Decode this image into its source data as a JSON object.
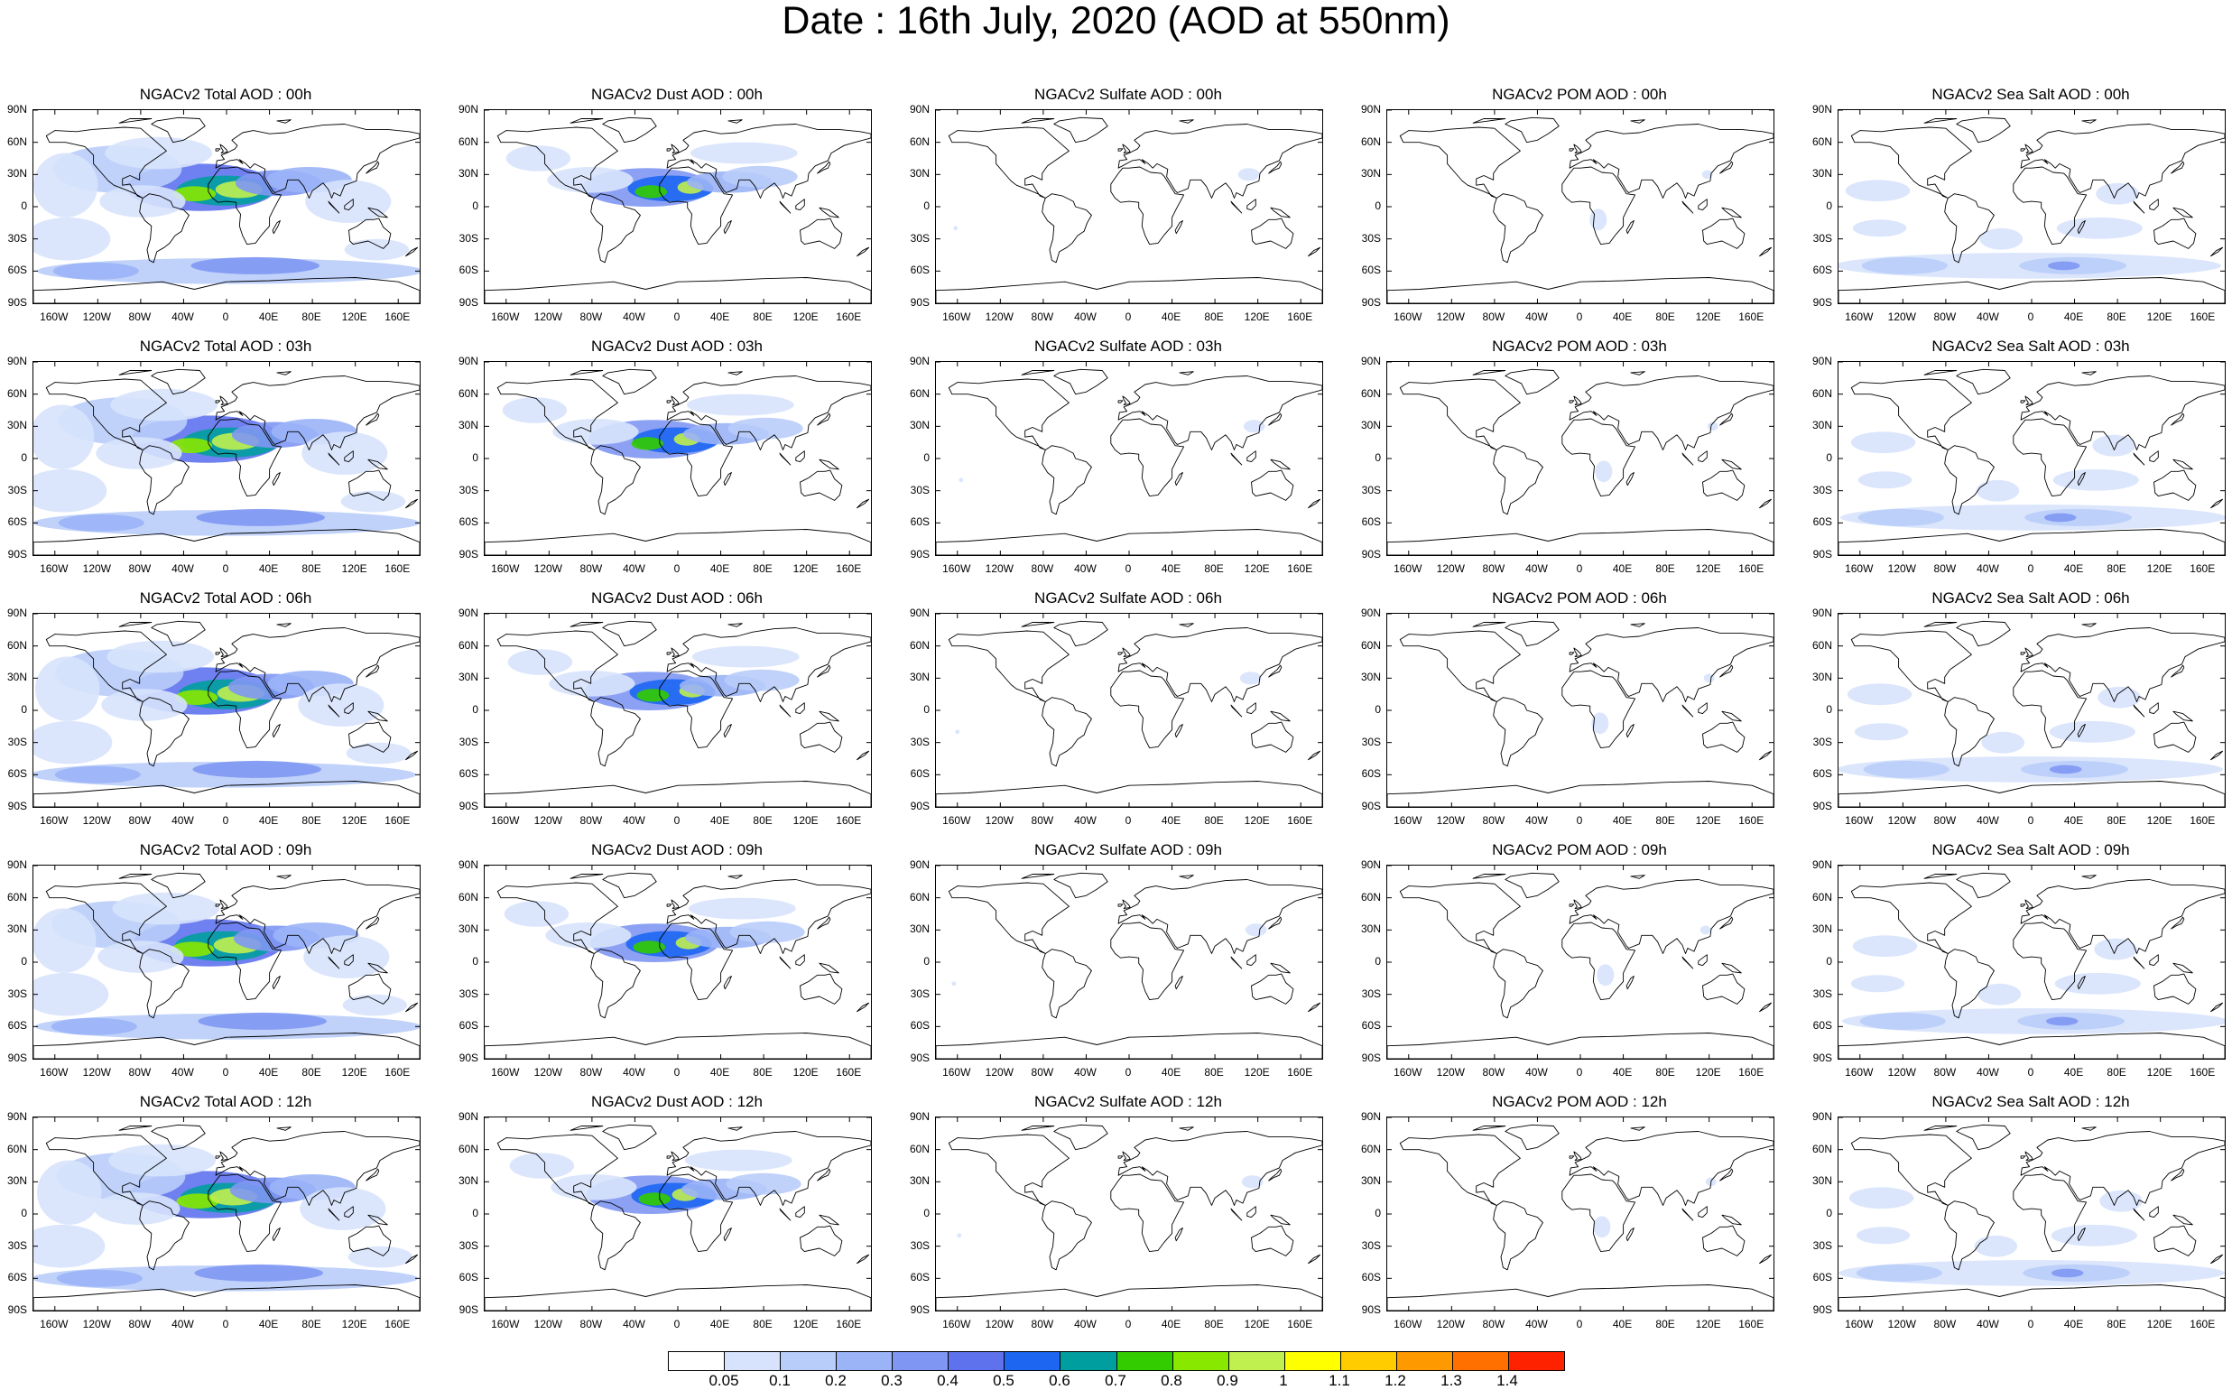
{
  "title": "Date : 16th July, 2020 (AOD at 550nm)",
  "lat_labels": [
    "90N",
    "60N",
    "30N",
    "0",
    "30S",
    "60S",
    "90S"
  ],
  "lon_labels": [
    "160W",
    "120W",
    "80W",
    "40W",
    "0",
    "40E",
    "80E",
    "120E",
    "160E"
  ],
  "panel_titles": [
    [
      "NGACv2 Total AOD : 00h",
      "NGACv2 Dust AOD : 00h",
      "NGACv2 Sulfate AOD : 00h",
      "NGACv2 POM AOD : 00h",
      "NGACv2 Sea Salt AOD : 00h"
    ],
    [
      "NGACv2 Total AOD : 03h",
      "NGACv2 Dust AOD : 03h",
      "NGACv2 Sulfate AOD : 03h",
      "NGACv2 POM AOD : 03h",
      "NGACv2 Sea Salt AOD : 03h"
    ],
    [
      "NGACv2 Total AOD : 06h",
      "NGACv2 Dust AOD : 06h",
      "NGACv2 Sulfate AOD : 06h",
      "NGACv2 POM AOD : 06h",
      "NGACv2 Sea Salt AOD : 06h"
    ],
    [
      "NGACv2 Total AOD : 09h",
      "NGACv2 Dust AOD : 09h",
      "NGACv2 Sulfate AOD : 09h",
      "NGACv2 POM AOD : 09h",
      "NGACv2 Sea Salt  AOD : 09h"
    ],
    [
      "NGACv2 Total AOD :  12h",
      "NGACv2 Dust AOD : 12h",
      "NGACv2 Sulfate AOD : 12h",
      "NGACv2 POM  AOD : 12h",
      "NGACv2 Sea Salt AOD : 12h"
    ]
  ],
  "colorbar": {
    "colors": [
      "#ffffff",
      "#d7e3fc",
      "#b9cdfa",
      "#9bb4f7",
      "#7f97f3",
      "#5f72ee",
      "#1c66f2",
      "#009e9e",
      "#33cc00",
      "#88e800",
      "#c0f050",
      "#ffff00",
      "#ffcc00",
      "#ff9900",
      "#ff7000",
      "#ff2200"
    ],
    "labels": [
      "0.05",
      "0.1",
      "0.2",
      "0.3",
      "0.4",
      "0.5",
      "0.6",
      "0.7",
      "0.8",
      "0.9",
      "1",
      "1.1",
      "1.2",
      "1.3",
      "1.4"
    ]
  }
}
